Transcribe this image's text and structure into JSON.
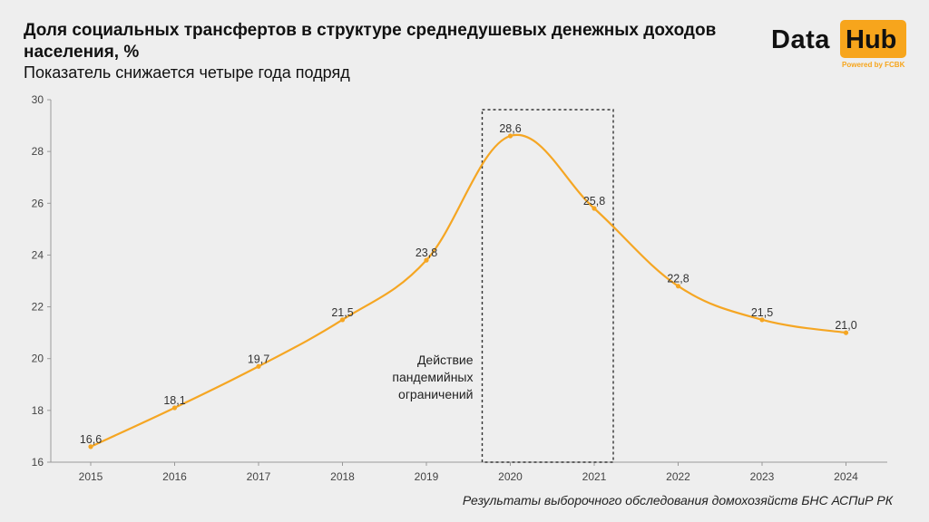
{
  "header": {
    "title": "Доля социальных трансфертов в структуре среднедушевых денежных доходов населения, %",
    "subtitle": "Показатель снижается четыре года подряд"
  },
  "logo": {
    "word1": "Data",
    "word2": "Hub",
    "powered": "Powered by FCBK",
    "accent_color": "#f7a51c"
  },
  "source": "Результаты выборочного обследования домохозяйств БНС АСПиР РК",
  "chart_data": {
    "type": "line",
    "categories": [
      "2015",
      "2016",
      "2017",
      "2018",
      "2019",
      "2020",
      "2021",
      "2022",
      "2023",
      "2024"
    ],
    "values": [
      16.6,
      18.1,
      19.7,
      21.5,
      23.8,
      28.6,
      25.8,
      22.8,
      21.5,
      21.0
    ],
    "value_labels": [
      "16,6",
      "18,1",
      "19,7",
      "21,5",
      "23,8",
      "28,6",
      "25,8",
      "22,8",
      "21,5",
      "21,0"
    ],
    "ylim": [
      16,
      30
    ],
    "yticks": [
      16,
      18,
      20,
      22,
      24,
      26,
      28,
      30
    ],
    "line_color": "#f5a623",
    "smooth": true,
    "annotation": {
      "text_lines": [
        "Действие",
        "пандемийных",
        "ограничений"
      ],
      "highlight_range": [
        "2020",
        "2021"
      ],
      "style": "dashed box"
    }
  }
}
